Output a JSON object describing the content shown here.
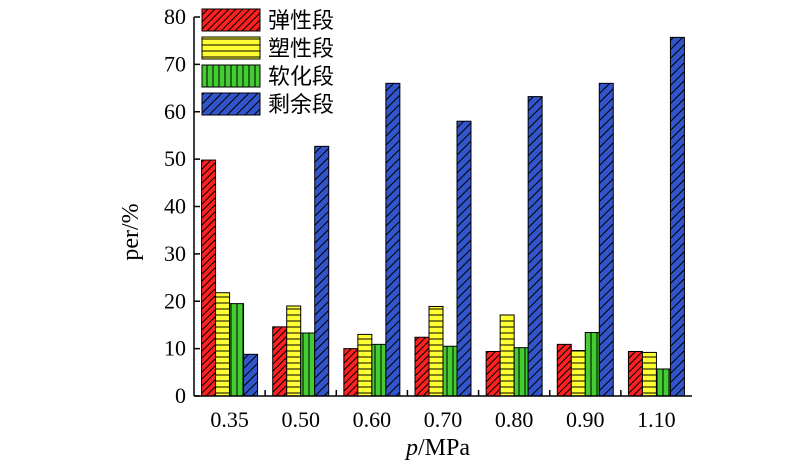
{
  "chart_data": {
    "type": "bar",
    "xlabel_italic": "p",
    "xlabel_rest": "/MPa",
    "ylabel": "per/%",
    "ylim": [
      0,
      80
    ],
    "yticks": [
      "0",
      "10",
      "20",
      "30",
      "40",
      "50",
      "60",
      "70",
      "80"
    ],
    "categories": [
      "0.35",
      "0.50",
      "0.60",
      "0.70",
      "0.80",
      "0.90",
      "1.10"
    ],
    "legend_position": "top-left",
    "series": [
      {
        "name": "弹性段",
        "color": "#ff2020",
        "hatch": "diag-dense",
        "values": [
          49.8,
          14.6,
          10.0,
          12.4,
          9.4,
          10.9,
          9.4
        ]
      },
      {
        "name": "塑性段",
        "color": "#ffff33",
        "hatch": "horizontal",
        "values": [
          21.8,
          19.0,
          13.0,
          18.9,
          17.1,
          9.6,
          9.2
        ]
      },
      {
        "name": "软化段",
        "color": "#44cc33",
        "hatch": "vertical",
        "values": [
          19.5,
          13.3,
          10.9,
          10.5,
          10.2,
          13.4,
          5.7
        ]
      },
      {
        "name": "剩余段",
        "color": "#3355cc",
        "hatch": "diag-sparse",
        "values": [
          8.8,
          52.7,
          66.0,
          58.0,
          63.2,
          66.0,
          75.7
        ]
      }
    ]
  }
}
